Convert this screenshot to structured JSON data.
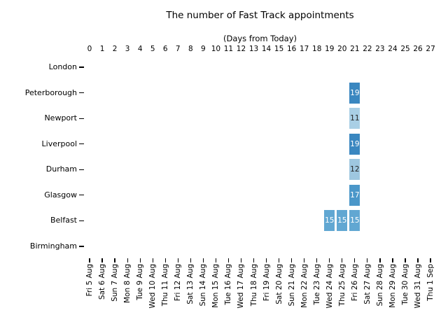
{
  "title": "The number of Fast Track appointments",
  "chart_data": {
    "type": "heatmap",
    "title": "The number of Fast Track appointments",
    "top_axis_label": "(Days from Today)",
    "top_axis_ticks": [
      "0",
      "1",
      "2",
      "3",
      "4",
      "5",
      "6",
      "7",
      "8",
      "9",
      "10",
      "11",
      "12",
      "13",
      "14",
      "15",
      "16",
      "17",
      "18",
      "19",
      "20",
      "21",
      "22",
      "23",
      "24",
      "25",
      "26",
      "27"
    ],
    "rows": [
      "London",
      "Peterborough",
      "Newport",
      "Liverpool",
      "Durham",
      "Glasgow",
      "Belfast",
      "Birmingham"
    ],
    "columns_dates": [
      "Fri 5 Aug",
      "Sat 6 Aug",
      "Sun 7 Aug",
      "Mon 8 Aug",
      "Tue 9 Aug",
      "Wed 10 Aug",
      "Thu 11 Aug",
      "Fri 12 Aug",
      "Sat 13 Aug",
      "Sun 14 Aug",
      "Mon 15 Aug",
      "Tue 16 Aug",
      "Wed 17 Aug",
      "Thu 18 Aug",
      "Fri 19 Aug",
      "Sat 20 Aug",
      "Sun 21 Aug",
      "Mon 22 Aug",
      "Tue 23 Aug",
      "Wed 24 Aug",
      "Thu 25 Aug",
      "Fri 26 Aug",
      "Sat 27 Aug",
      "Sun 28 Aug",
      "Mon 29 Aug",
      "Tue 30 Aug",
      "Wed 31 Aug",
      "Thu 1 Sep"
    ],
    "grid": false,
    "legend": "none",
    "empty_rows": [
      "London",
      "Birmingham"
    ],
    "cells": [
      {
        "row": "Peterborough",
        "day": 21,
        "date": "Fri 26 Aug",
        "value": 19,
        "color": "#3a87c0",
        "text_color": "#ffffff"
      },
      {
        "row": "Newport",
        "day": 21,
        "date": "Fri 26 Aug",
        "value": 11,
        "color": "#a9cfe5",
        "text_color": "#262626"
      },
      {
        "row": "Liverpool",
        "day": 21,
        "date": "Fri 26 Aug",
        "value": 19,
        "color": "#3a87c0",
        "text_color": "#ffffff"
      },
      {
        "row": "Durham",
        "day": 21,
        "date": "Fri 26 Aug",
        "value": 12,
        "color": "#9ec7e0",
        "text_color": "#262626"
      },
      {
        "row": "Glasgow",
        "day": 21,
        "date": "Fri 26 Aug",
        "value": 17,
        "color": "#4b97c9",
        "text_color": "#ffffff"
      },
      {
        "row": "Belfast",
        "day": 19,
        "date": "Wed 24 Aug",
        "value": 15,
        "color": "#61a7d2",
        "text_color": "#ffffff"
      },
      {
        "row": "Belfast",
        "day": 20,
        "date": "Thu 25 Aug",
        "value": 15,
        "color": "#61a7d2",
        "text_color": "#ffffff"
      },
      {
        "row": "Belfast",
        "day": 21,
        "date": "Fri 26 Aug",
        "value": 15,
        "color": "#61a7d2",
        "text_color": "#ffffff"
      }
    ]
  }
}
